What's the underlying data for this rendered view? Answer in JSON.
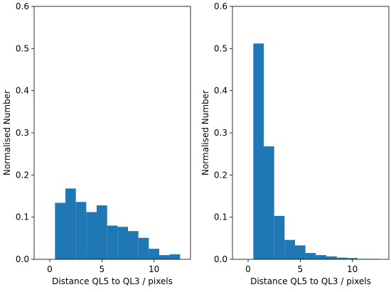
{
  "chart_data": [
    {
      "type": "bar",
      "xlabel": "Distance QL5 to QL3 / pixels",
      "ylabel": "Normalised Number",
      "xlim": [
        -1.5,
        13.5
      ],
      "ylim": [
        0,
        0.6
      ],
      "xticks": [
        0,
        5,
        10
      ],
      "yticks": [
        0.0,
        0.1,
        0.2,
        0.3,
        0.4,
        0.5,
        0.6
      ],
      "grid": false,
      "bar_color": "#1f77b4",
      "bins": [
        {
          "x0": 0.5,
          "x1": 1.5,
          "value": 0.134
        },
        {
          "x0": 1.5,
          "x1": 2.5,
          "value": 0.168
        },
        {
          "x0": 2.5,
          "x1": 3.5,
          "value": 0.136
        },
        {
          "x0": 3.5,
          "x1": 4.5,
          "value": 0.112
        },
        {
          "x0": 4.5,
          "x1": 5.5,
          "value": 0.128
        },
        {
          "x0": 5.5,
          "x1": 6.5,
          "value": 0.08
        },
        {
          "x0": 6.5,
          "x1": 7.5,
          "value": 0.077
        },
        {
          "x0": 7.5,
          "x1": 8.5,
          "value": 0.067
        },
        {
          "x0": 8.5,
          "x1": 9.5,
          "value": 0.051
        },
        {
          "x0": 9.5,
          "x1": 10.5,
          "value": 0.025
        },
        {
          "x0": 10.5,
          "x1": 11.5,
          "value": 0.01
        },
        {
          "x0": 11.5,
          "x1": 12.5,
          "value": 0.012
        }
      ]
    },
    {
      "type": "bar",
      "xlabel": "Distance QL5 to QL3 / pixels",
      "ylabel": "Normalised Number",
      "xlim": [
        -1.5,
        13.5
      ],
      "ylim": [
        0,
        0.6
      ],
      "xticks": [
        0,
        5,
        10
      ],
      "yticks": [
        0.0,
        0.1,
        0.2,
        0.3,
        0.4,
        0.5,
        0.6
      ],
      "grid": false,
      "bar_color": "#1f77b4",
      "bins": [
        {
          "x0": 0.5,
          "x1": 1.5,
          "value": 0.512
        },
        {
          "x0": 1.5,
          "x1": 2.5,
          "value": 0.268
        },
        {
          "x0": 2.5,
          "x1": 3.5,
          "value": 0.103
        },
        {
          "x0": 3.5,
          "x1": 4.5,
          "value": 0.046
        },
        {
          "x0": 4.5,
          "x1": 5.5,
          "value": 0.033
        },
        {
          "x0": 5.5,
          "x1": 6.5,
          "value": 0.015
        },
        {
          "x0": 6.5,
          "x1": 7.5,
          "value": 0.01
        },
        {
          "x0": 7.5,
          "x1": 8.5,
          "value": 0.007
        },
        {
          "x0": 8.5,
          "x1": 9.5,
          "value": 0.004
        },
        {
          "x0": 9.5,
          "x1": 10.5,
          "value": 0.003
        },
        {
          "x0": 10.5,
          "x1": 11.5,
          "value": 0.001
        },
        {
          "x0": 11.5,
          "x1": 12.5,
          "value": 0.001
        }
      ]
    }
  ]
}
